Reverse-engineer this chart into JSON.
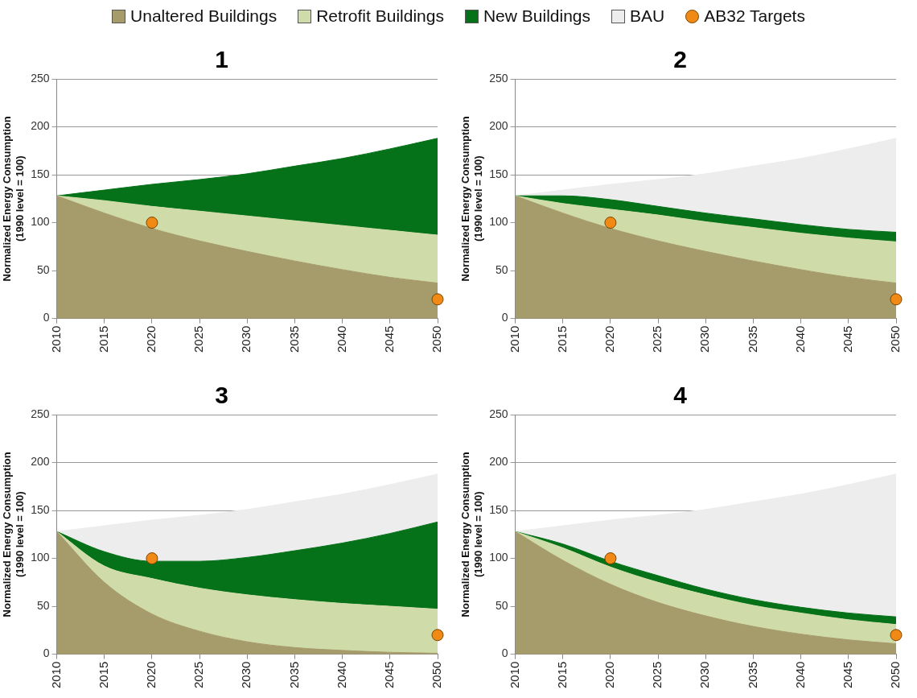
{
  "chart_data": [
    {
      "type": "area",
      "title": "1",
      "ylabel": "Normalized Energy Consumption\n(1990 level = 100)",
      "stacked": true,
      "grid": "y",
      "x": [
        2010,
        2015,
        2020,
        2025,
        2030,
        2035,
        2040,
        2045,
        2050
      ],
      "xlim": [
        2010,
        2050
      ],
      "xticks": [
        2010,
        2015,
        2020,
        2025,
        2030,
        2035,
        2040,
        2045,
        2050
      ],
      "ylim": [
        0,
        250
      ],
      "yticks": [
        0,
        50,
        100,
        150,
        200,
        250
      ],
      "series": [
        {
          "color": "#a69b6a",
          "values": [
            128,
            110,
            94,
            81,
            70,
            60,
            51,
            43,
            37
          ]
        },
        {
          "color": "#cfdcaa",
          "values": [
            0,
            13,
            23,
            31,
            37,
            42,
            46,
            49,
            50
          ]
        },
        {
          "color": "#057118",
          "values": [
            0,
            11,
            23,
            33,
            44,
            57,
            70,
            85,
            101
          ]
        },
        {
          "type": "scatter",
          "marker": "circle",
          "color": "#f08a14",
          "values": [
            null,
            null,
            100,
            null,
            null,
            null,
            null,
            null,
            20
          ]
        }
      ]
    },
    {
      "type": "area",
      "title": "2",
      "ylabel": "Normalized Energy Consumption\n(1990 level = 100)",
      "stacked": true,
      "legend": "top",
      "grid": "y",
      "x": [
        2010,
        2015,
        2020,
        2025,
        2030,
        2035,
        2040,
        2045,
        2050
      ],
      "xlim": [
        2010,
        2050
      ],
      "xticks": [
        2010,
        2015,
        2020,
        2025,
        2030,
        2035,
        2040,
        2045,
        2050
      ],
      "ylim": [
        0,
        250
      ],
      "yticks": [
        0,
        50,
        100,
        150,
        200,
        250
      ],
      "series": [
        {
          "name": "Unaltered Buildings",
          "color": "#a69b6a",
          "values": [
            128,
            110,
            94,
            81,
            70,
            60,
            51,
            43,
            37
          ]
        },
        {
          "name": "Retrofit Buildings",
          "color": "#cfdcaa",
          "values": [
            0,
            10,
            20,
            27,
            31,
            35,
            38,
            41,
            43
          ]
        },
        {
          "name": "New Buildings",
          "color": "#057118",
          "values": [
            0,
            8,
            10,
            9,
            9,
            9,
            9,
            9,
            10
          ]
        },
        {
          "name": "BAU",
          "color": "#ededed",
          "values": [
            0,
            6,
            16,
            28,
            41,
            55,
            69,
            84,
            98
          ]
        },
        {
          "name": "AB32 Targets",
          "type": "scatter",
          "marker": "circle",
          "color": "#f08a14",
          "values": [
            null,
            null,
            100,
            null,
            null,
            null,
            null,
            null,
            20
          ]
        }
      ]
    },
    {
      "type": "area",
      "title": "3",
      "ylabel": "Normalized Energy Consumption\n(1990 level = 100)",
      "stacked": true,
      "grid": "y",
      "x": [
        2010,
        2015,
        2020,
        2025,
        2030,
        2035,
        2040,
        2045,
        2050
      ],
      "xlim": [
        2010,
        2050
      ],
      "xticks": [
        2010,
        2015,
        2020,
        2025,
        2030,
        2035,
        2040,
        2045,
        2050
      ],
      "ylim": [
        0,
        250
      ],
      "yticks": [
        0,
        50,
        100,
        150,
        200,
        250
      ],
      "series": [
        {
          "color": "#a69b6a",
          "values": [
            128,
            75,
            42,
            24,
            13,
            7,
            4,
            2,
            1
          ]
        },
        {
          "color": "#cfdcaa",
          "values": [
            0,
            17,
            37,
            45,
            49,
            50,
            49,
            48,
            46
          ]
        },
        {
          "color": "#057118",
          "values": [
            0,
            15,
            18,
            28,
            39,
            51,
            63,
            76,
            91
          ]
        },
        {
          "color": "#ededed",
          "values": [
            0,
            27,
            43,
            48,
            50,
            51,
            51,
            51,
            50
          ]
        },
        {
          "type": "scatter",
          "marker": "circle",
          "color": "#f08a14",
          "values": [
            null,
            null,
            100,
            null,
            null,
            null,
            null,
            null,
            20
          ]
        }
      ]
    },
    {
      "type": "area",
      "title": "4",
      "ylabel": "Normalized Energy Consumption\n(1990 level = 100)",
      "stacked": true,
      "grid": "y",
      "x": [
        2010,
        2015,
        2020,
        2025,
        2030,
        2035,
        2040,
        2045,
        2050
      ],
      "xlim": [
        2010,
        2050
      ],
      "xticks": [
        2010,
        2015,
        2020,
        2025,
        2030,
        2035,
        2040,
        2045,
        2050
      ],
      "ylim": [
        0,
        250
      ],
      "yticks": [
        0,
        50,
        100,
        150,
        200,
        250
      ],
      "series": [
        {
          "color": "#a69b6a",
          "values": [
            128,
            98,
            73,
            54,
            40,
            29,
            21,
            15,
            11
          ]
        },
        {
          "color": "#cfdcaa",
          "values": [
            0,
            13,
            18,
            21,
            22,
            22,
            22,
            21,
            20
          ]
        },
        {
          "color": "#057118",
          "values": [
            0,
            4,
            6,
            7,
            6,
            6,
            6,
            7,
            8
          ]
        },
        {
          "color": "#ededed",
          "values": [
            0,
            19,
            43,
            63,
            83,
            102,
            118,
            134,
            149
          ]
        },
        {
          "type": "scatter",
          "marker": "circle",
          "color": "#f08a14",
          "values": [
            null,
            null,
            100,
            null,
            null,
            null,
            null,
            null,
            20
          ]
        }
      ]
    }
  ]
}
